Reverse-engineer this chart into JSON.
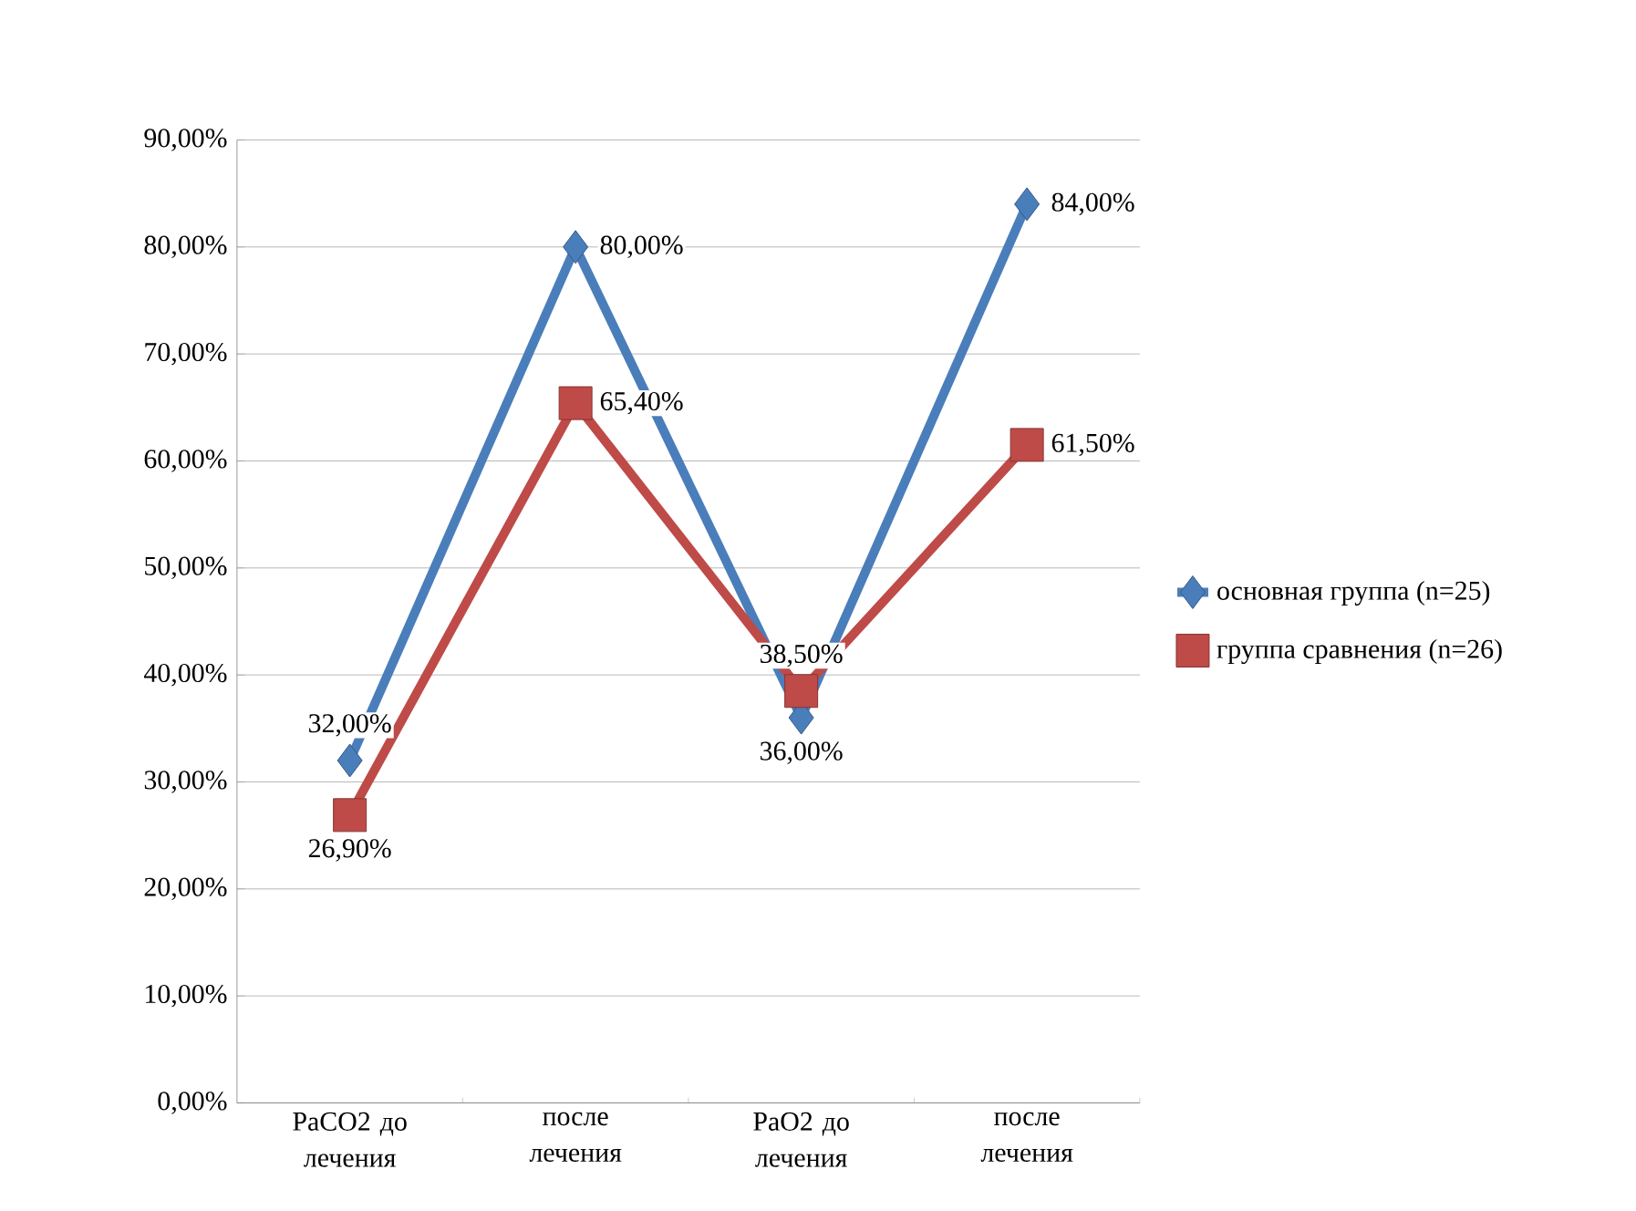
{
  "chart_data": {
    "type": "line",
    "categories": [
      "PaCO2 до лечения",
      "после лечения",
      "PaO2 до лечения",
      "после лечения"
    ],
    "series": [
      {
        "name": "основная группа (n=25)",
        "color": "#4a7ebb",
        "marker": "diamond",
        "values": [
          32.0,
          80.0,
          36.0,
          84.0
        ],
        "value_labels": [
          "32,00%",
          "80,00%",
          "36,00%",
          "84,00%"
        ]
      },
      {
        "name": "группа сравнения (n=26)",
        "color": "#be4b48",
        "marker": "square",
        "values": [
          26.9,
          65.4,
          38.5,
          61.5
        ],
        "value_labels": [
          "26,90%",
          "65,40%",
          "38,50%",
          "61,50%"
        ]
      }
    ],
    "ylim": [
      0,
      90
    ],
    "yticks": [
      {
        "value": 0,
        "label": "0,00%"
      },
      {
        "value": 10,
        "label": "10,00%"
      },
      {
        "value": 20,
        "label": "20,00%"
      },
      {
        "value": 30,
        "label": "30,00%"
      },
      {
        "value": 40,
        "label": "40,00%"
      },
      {
        "value": 50,
        "label": "50,00%"
      },
      {
        "value": 60,
        "label": "60,00%"
      },
      {
        "value": 70,
        "label": "70,00%"
      },
      {
        "value": 80,
        "label": "80,00%"
      },
      {
        "value": 90,
        "label": "90,00%"
      }
    ],
    "grid": "y",
    "legend": "right",
    "line_style": "solid"
  }
}
